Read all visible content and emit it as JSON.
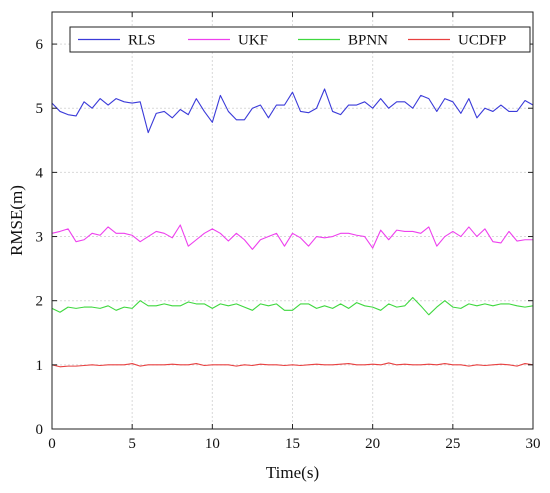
{
  "chart_data": {
    "type": "line",
    "title": "",
    "xlabel": "Time(s)",
    "ylabel": "RMSE(m)",
    "xlim": [
      0,
      30
    ],
    "ylim": [
      0,
      6.5
    ],
    "xticks": [
      0,
      5,
      10,
      15,
      20,
      25,
      30
    ],
    "yticks": [
      0,
      1,
      2,
      3,
      4,
      5,
      6
    ],
    "grid": true,
    "legend": "top",
    "x": [
      0,
      0.5,
      1,
      1.5,
      2,
      2.5,
      3,
      3.5,
      4,
      4.5,
      5,
      5.5,
      6,
      6.5,
      7,
      7.5,
      8,
      8.5,
      9,
      9.5,
      10,
      10.5,
      11,
      11.5,
      12,
      12.5,
      13,
      13.5,
      14,
      14.5,
      15,
      15.5,
      16,
      16.5,
      17,
      17.5,
      18,
      18.5,
      19,
      19.5,
      20,
      20.5,
      21,
      21.5,
      22,
      22.5,
      23,
      23.5,
      24,
      24.5,
      25,
      25.5,
      26,
      26.5,
      27,
      27.5,
      28,
      28.5,
      29,
      29.5,
      30
    ],
    "series": [
      {
        "name": "RLS",
        "color": "#3b3bd9",
        "values": [
          5.08,
          4.95,
          4.9,
          4.88,
          5.1,
          5.0,
          5.15,
          5.05,
          5.15,
          5.1,
          5.08,
          5.1,
          4.62,
          4.92,
          4.95,
          4.85,
          4.98,
          4.9,
          5.15,
          4.95,
          4.78,
          5.2,
          4.95,
          4.82,
          4.82,
          5.0,
          5.05,
          4.85,
          5.05,
          5.05,
          5.25,
          4.95,
          4.93,
          5.0,
          5.3,
          4.95,
          4.9,
          5.05,
          5.05,
          5.1,
          5.0,
          5.15,
          5.0,
          5.1,
          5.1,
          5.0,
          5.2,
          5.15,
          4.95,
          5.15,
          5.1,
          4.92,
          5.15,
          4.85,
          5.0,
          4.95,
          5.05,
          4.95,
          4.95,
          5.12,
          5.05
        ]
      },
      {
        "name": "UKF",
        "color": "#ee40ee",
        "values": [
          3.05,
          3.08,
          3.12,
          2.92,
          2.95,
          3.05,
          3.02,
          3.15,
          3.05,
          3.05,
          3.02,
          2.92,
          3.0,
          3.08,
          3.05,
          2.98,
          3.18,
          2.85,
          2.95,
          3.05,
          3.12,
          3.05,
          2.93,
          3.05,
          2.95,
          2.8,
          2.95,
          3.0,
          3.05,
          2.85,
          3.05,
          2.98,
          2.85,
          3.0,
          2.98,
          3.0,
          3.05,
          3.05,
          3.02,
          3.0,
          2.82,
          3.1,
          2.95,
          3.1,
          3.08,
          3.08,
          3.05,
          3.15,
          2.85,
          3.0,
          3.08,
          3.0,
          3.15,
          3.0,
          3.12,
          2.92,
          2.9,
          3.08,
          2.93,
          2.95,
          2.95
        ]
      },
      {
        "name": "BPNN",
        "color": "#3fd83f",
        "values": [
          1.88,
          1.82,
          1.9,
          1.88,
          1.9,
          1.9,
          1.88,
          1.92,
          1.85,
          1.9,
          1.88,
          2.0,
          1.92,
          1.92,
          1.95,
          1.92,
          1.92,
          1.98,
          1.95,
          1.95,
          1.88,
          1.95,
          1.92,
          1.95,
          1.9,
          1.85,
          1.95,
          1.92,
          1.95,
          1.85,
          1.85,
          1.95,
          1.95,
          1.88,
          1.92,
          1.88,
          1.95,
          1.88,
          1.97,
          1.92,
          1.9,
          1.85,
          1.95,
          1.9,
          1.92,
          2.05,
          1.92,
          1.78,
          1.9,
          2.0,
          1.9,
          1.88,
          1.95,
          1.92,
          1.95,
          1.92,
          1.95,
          1.95,
          1.92,
          1.9,
          1.92
        ]
      },
      {
        "name": "UCDFP",
        "color": "#e84040",
        "values": [
          1.0,
          0.97,
          0.98,
          0.98,
          0.99,
          1.0,
          0.99,
          1.0,
          1.0,
          1.0,
          1.02,
          0.98,
          1.0,
          1.0,
          1.0,
          1.01,
          1.0,
          1.0,
          1.02,
          0.99,
          1.0,
          1.0,
          1.0,
          0.98,
          1.0,
          0.99,
          1.01,
          1.0,
          1.0,
          0.99,
          1.0,
          0.99,
          1.0,
          1.01,
          1.0,
          1.0,
          1.01,
          1.02,
          1.0,
          1.0,
          1.01,
          1.0,
          1.03,
          1.0,
          1.01,
          1.0,
          1.0,
          1.01,
          1.0,
          1.02,
          1.0,
          1.0,
          0.98,
          1.0,
          0.99,
          1.0,
          1.01,
          1.0,
          0.98,
          1.02,
          1.0
        ]
      }
    ]
  }
}
